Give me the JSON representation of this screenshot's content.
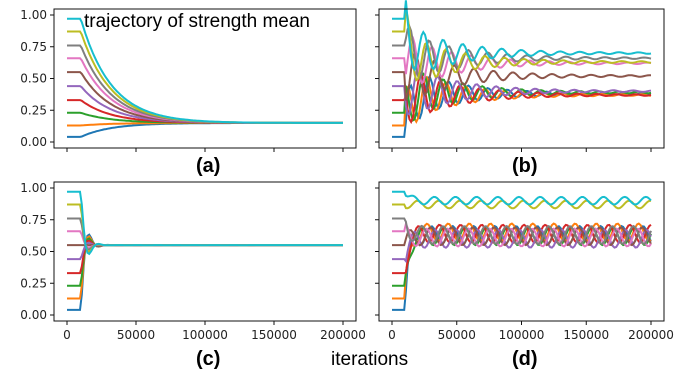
{
  "figure": {
    "annotation": "trajectory of strength mean",
    "xlabel": "iterations"
  },
  "chart_data": [
    {
      "id": "a",
      "label": "(a)",
      "type": "line",
      "behavior": "converge",
      "xlim": [
        0,
        200000
      ],
      "ylim": [
        0,
        1
      ],
      "yticks": [
        "0.00",
        "0.25",
        "0.50",
        "0.75",
        "1.00"
      ],
      "xticks": [],
      "start_values": [
        0.04,
        0.13,
        0.23,
        0.33,
        0.44,
        0.55,
        0.66,
        0.76,
        0.87,
        0.97
      ],
      "final_values": [
        0.15,
        0.15,
        0.15,
        0.15,
        0.15,
        0.15,
        0.15,
        0.15,
        0.15,
        0.15
      ],
      "series_colors": [
        "#1f77b4",
        "#ff7f0e",
        "#2ca02c",
        "#d62728",
        "#9467bd",
        "#8c564b",
        "#e377c2",
        "#7f7f7f",
        "#bcbd22",
        "#17becf"
      ]
    },
    {
      "id": "b",
      "label": "(b)",
      "type": "line",
      "behavior": "damped",
      "xlim": [
        0,
        200000
      ],
      "ylim": [
        0,
        1
      ],
      "yticks": [],
      "xticks": [],
      "start_values": [
        0.04,
        0.13,
        0.23,
        0.33,
        0.44,
        0.55,
        0.66,
        0.76,
        0.87,
        0.97
      ],
      "final_values": [
        0.38,
        0.37,
        0.39,
        0.37,
        0.4,
        0.52,
        0.62,
        0.66,
        0.63,
        0.7
      ],
      "series_colors": [
        "#1f77b4",
        "#ff7f0e",
        "#2ca02c",
        "#d62728",
        "#9467bd",
        "#8c564b",
        "#e377c2",
        "#7f7f7f",
        "#bcbd22",
        "#17becf"
      ]
    },
    {
      "id": "c",
      "label": "(c)",
      "type": "line",
      "behavior": "fast",
      "xlim": [
        0,
        200000
      ],
      "ylim": [
        0,
        1
      ],
      "yticks": [
        "0.00",
        "0.25",
        "0.50",
        "0.75",
        "1.00"
      ],
      "xticks": [
        "0",
        "50000",
        "100000",
        "150000",
        "200000"
      ],
      "start_values": [
        0.04,
        0.13,
        0.23,
        0.33,
        0.44,
        0.55,
        0.66,
        0.76,
        0.87,
        0.97
      ],
      "final_values": [
        0.55,
        0.55,
        0.55,
        0.55,
        0.55,
        0.55,
        0.55,
        0.55,
        0.55,
        0.55
      ],
      "series_colors": [
        "#1f77b4",
        "#ff7f0e",
        "#2ca02c",
        "#d62728",
        "#9467bd",
        "#8c564b",
        "#e377c2",
        "#7f7f7f",
        "#bcbd22",
        "#17becf"
      ]
    },
    {
      "id": "d",
      "label": "(d)",
      "type": "line",
      "behavior": "sustained",
      "xlim": [
        0,
        200000
      ],
      "ylim": [
        0,
        1
      ],
      "yticks": [],
      "xticks": [
        "0",
        "50000",
        "100000",
        "150000",
        "200000"
      ],
      "start_values": [
        0.04,
        0.13,
        0.23,
        0.33,
        0.44,
        0.55,
        0.66,
        0.76,
        0.87,
        0.97
      ],
      "final_values": [
        0.63,
        0.65,
        0.62,
        0.64,
        0.6,
        0.62,
        0.61,
        0.63,
        0.87,
        0.9
      ],
      "series_colors": [
        "#1f77b4",
        "#ff7f0e",
        "#2ca02c",
        "#d62728",
        "#9467bd",
        "#8c564b",
        "#e377c2",
        "#7f7f7f",
        "#bcbd22",
        "#17becf"
      ]
    }
  ]
}
